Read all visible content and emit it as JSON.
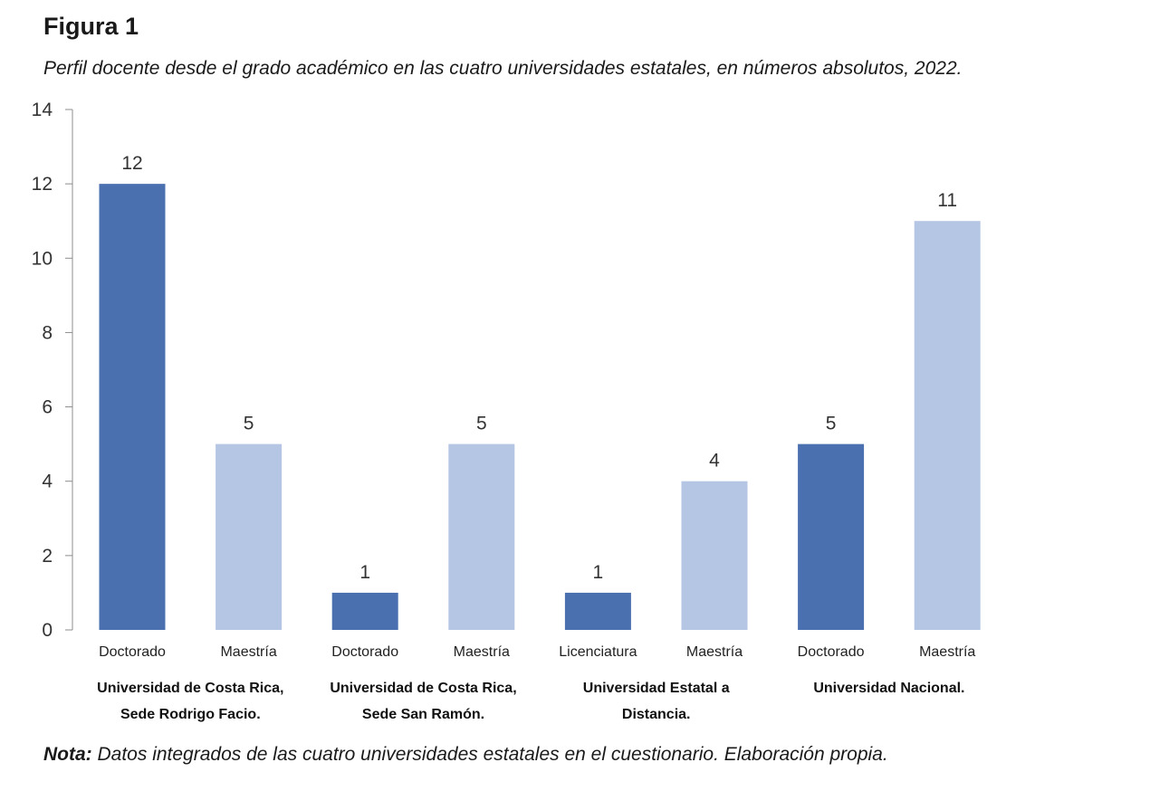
{
  "figure": {
    "label": "Figura 1",
    "title": "Perfil docente desde el grado académico en las cuatro universidades estatales, en números absolutos, 2022."
  },
  "chart_data": {
    "type": "bar",
    "ylim": [
      0,
      14
    ],
    "yticks": [
      0,
      2,
      4,
      6,
      8,
      10,
      12,
      14
    ],
    "grid": false,
    "legend": "none",
    "colors": {
      "dark": "#4a70b0",
      "light": "#b4c6e3"
    },
    "bars": [
      {
        "label": "Doctorado",
        "value": 12,
        "shade": "dark"
      },
      {
        "label": "Maestría",
        "value": 5,
        "shade": "light"
      },
      {
        "label": "Doctorado",
        "value": 1,
        "shade": "dark"
      },
      {
        "label": "Maestría",
        "value": 5,
        "shade": "light"
      },
      {
        "label": "Licenciatura",
        "value": 1,
        "shade": "dark"
      },
      {
        "label": "Maestría",
        "value": 4,
        "shade": "light"
      },
      {
        "label": "Doctorado",
        "value": 5,
        "shade": "dark"
      },
      {
        "label": "Maestría",
        "value": 11,
        "shade": "light"
      }
    ],
    "groups": [
      {
        "lines": [
          "Universidad de Costa Rica,",
          "Sede Rodrigo Facio."
        ]
      },
      {
        "lines": [
          "Universidad de Costa Rica,",
          "Sede San Ramón."
        ]
      },
      {
        "lines": [
          "Universidad Estatal a",
          "Distancia."
        ]
      },
      {
        "lines": [
          "Universidad Nacional."
        ]
      }
    ]
  },
  "note": {
    "label": "Nota:",
    "text": " Datos integrados de las cuatro universidades estatales en el cuestionario. Elaboración propia."
  }
}
